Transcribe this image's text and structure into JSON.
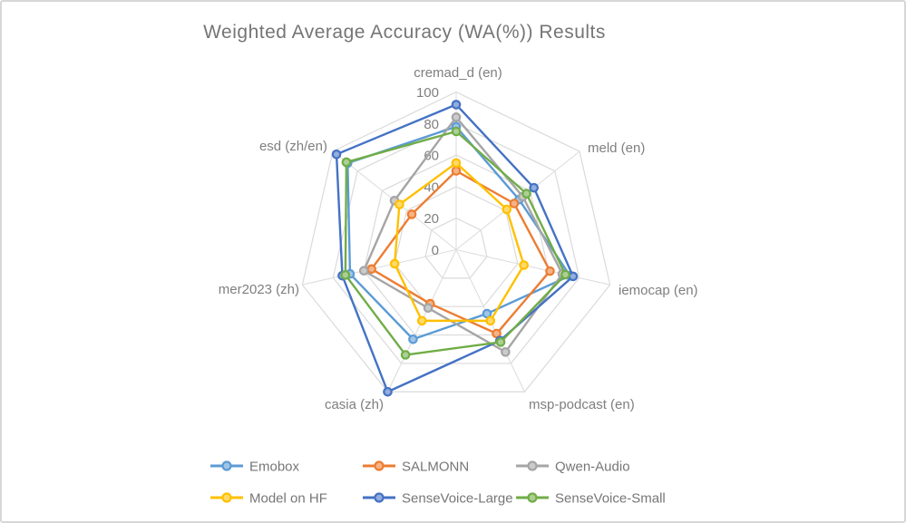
{
  "title": "Weighted Average Accuracy (WA(%)) Results",
  "chart_data": {
    "type": "radar",
    "title": "Weighted Average Accuracy (WA(%)) Results",
    "categories": [
      "cremad_d (en)",
      "meld (en)",
      "iemocap (en)",
      "msp-podcast (en)",
      "casia (zh)",
      "mer2023 (zh)",
      "esd  (zh/en)"
    ],
    "series": [
      {
        "name": "Emobox",
        "color": "#5B9BD5",
        "values": [
          78,
          51,
          74,
          45,
          63,
          69,
          88
        ]
      },
      {
        "name": "SALMONN",
        "color": "#ED7D31",
        "values": [
          50,
          47,
          61,
          59,
          38,
          55,
          36
        ]
      },
      {
        "name": "Qwen-Audio",
        "color": "#A5A5A5",
        "values": [
          84,
          54,
          69,
          72,
          41,
          60,
          50
        ]
      },
      {
        "name": "Model on HF",
        "color": "#FFC000",
        "values": [
          55,
          41,
          44,
          50,
          50,
          40,
          46
        ]
      },
      {
        "name": "SenseVoice-Large",
        "color": "#4472C4",
        "values": [
          92,
          63,
          76,
          64,
          100,
          74,
          97
        ]
      },
      {
        "name": "SenseVoice-Small",
        "color": "#70AD47",
        "values": [
          75,
          57,
          71,
          65,
          74,
          72,
          89
        ]
      }
    ],
    "radial_axis": {
      "min": 0,
      "max": 100,
      "tick_interval": 20,
      "tick_labels": [
        "0",
        "20",
        "40",
        "60",
        "80",
        "100"
      ]
    },
    "grid": true,
    "legend_position": "bottom"
  }
}
